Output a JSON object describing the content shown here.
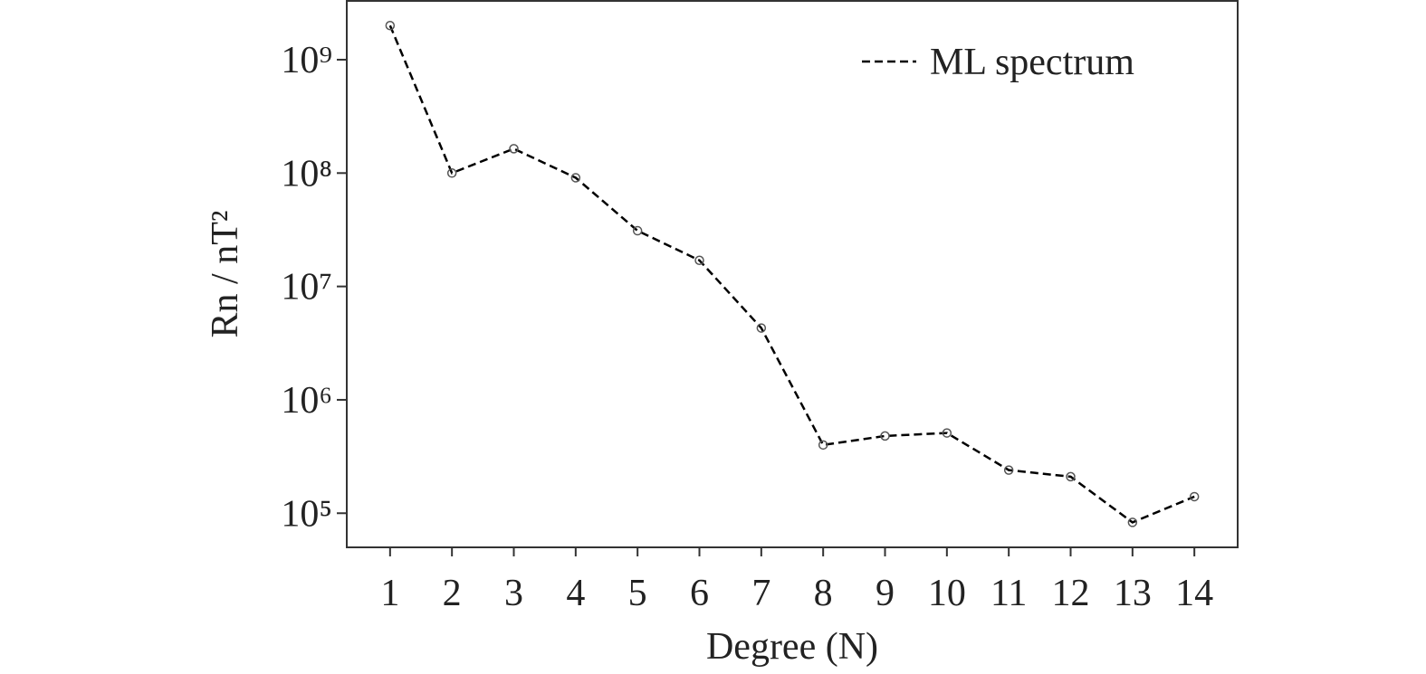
{
  "chart_data": {
    "type": "line",
    "xlabel": "Degree (N)",
    "ylabel": "Rn / nT²",
    "x": [
      1,
      2,
      3,
      4,
      5,
      6,
      7,
      8,
      9,
      10,
      11,
      12,
      13,
      14
    ],
    "series": [
      {
        "name": "ML spectrum",
        "color": "#000000",
        "values": [
          2000000000,
          100000000,
          164000000,
          91000000,
          31000000,
          17000000,
          4300000,
          400000,
          480000,
          510000,
          240000,
          210000,
          83000,
          140000
        ]
      }
    ],
    "xlim": [
      0.3,
      14.7
    ],
    "xticks": [
      1,
      2,
      3,
      4,
      5,
      6,
      7,
      8,
      9,
      10,
      11,
      12,
      13,
      14
    ],
    "ylim": [
      50000,
      3300000000
    ],
    "yticks": [
      {
        "value": 100000,
        "label": "10⁵"
      },
      {
        "value": 1000000,
        "label": "10⁶"
      },
      {
        "value": 10000000,
        "label": "10⁷"
      },
      {
        "value": 100000000,
        "label": "10⁸"
      },
      {
        "value": 1000000000,
        "label": "10⁹"
      }
    ],
    "yscale": "log",
    "legend": "upper right",
    "line_style": "dashed"
  }
}
